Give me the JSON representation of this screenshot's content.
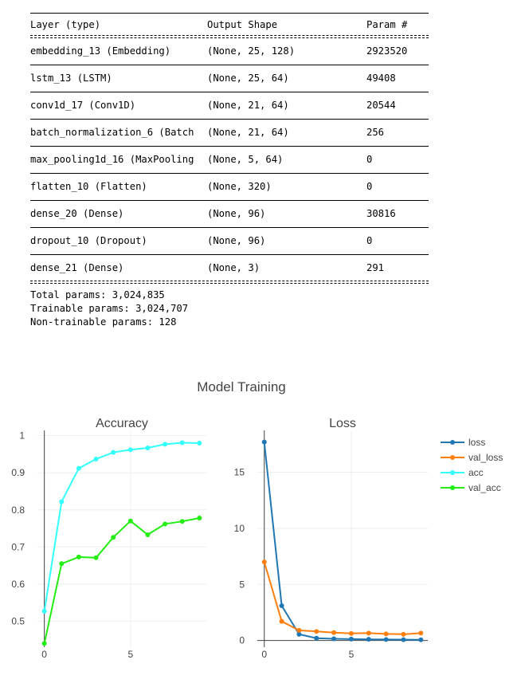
{
  "summary": {
    "headers": [
      "Layer (type)",
      "Output Shape",
      "Param #"
    ],
    "rows": [
      [
        "embedding_13 (Embedding)",
        "(None, 25, 128)",
        "2923520"
      ],
      [
        "lstm_13 (LSTM)",
        "(None, 25, 64)",
        "49408"
      ],
      [
        "conv1d_17 (Conv1D)",
        "(None, 21, 64)",
        "20544"
      ],
      [
        "batch_normalization_6 (Batch",
        "(None, 21, 64)",
        "256"
      ],
      [
        "max_pooling1d_16 (MaxPooling",
        "(None, 5, 64)",
        "0"
      ],
      [
        "flatten_10 (Flatten)",
        "(None, 320)",
        "0"
      ],
      [
        "dense_20 (Dense)",
        "(None, 96)",
        "30816"
      ],
      [
        "dropout_10 (Dropout)",
        "(None, 96)",
        "0"
      ],
      [
        "dense_21 (Dense)",
        "(None, 3)",
        "291"
      ]
    ],
    "totals": [
      "Total params: 3,024,835",
      "Trainable params: 3,024,707",
      "Non-trainable params: 128"
    ]
  },
  "chart_data": {
    "type": "line",
    "title": "Model Training",
    "subplots": [
      {
        "title": "Accuracy",
        "x": [
          0,
          1,
          2,
          3,
          4,
          5,
          6,
          7,
          8,
          9
        ],
        "xlim": [
          -0.4,
          9.4
        ],
        "ylim": [
          0.43,
          1.01
        ],
        "xticks": [
          0,
          5
        ],
        "yticks": [
          0.5,
          0.6,
          0.7,
          0.8,
          0.9,
          1
        ],
        "series": [
          {
            "name": "acc",
            "color": "#33ffff",
            "values": [
              0.527,
              0.822,
              0.912,
              0.937,
              0.955,
              0.962,
              0.967,
              0.977,
              0.981,
              0.98
            ]
          },
          {
            "name": "val_acc",
            "color": "#22ee11",
            "values": [
              0.44,
              0.655,
              0.673,
              0.671,
              0.726,
              0.77,
              0.733,
              0.762,
              0.769,
              0.778
            ]
          }
        ]
      },
      {
        "title": "Loss",
        "x": [
          0,
          1,
          2,
          3,
          4,
          5,
          6,
          7,
          8,
          9
        ],
        "xlim": [
          -0.4,
          9.4
        ],
        "ylim": [
          -0.6,
          18.6
        ],
        "xticks": [
          0,
          5
        ],
        "yticks": [
          0,
          5,
          10,
          15
        ],
        "series": [
          {
            "name": "loss",
            "color": "#1f77b4",
            "values": [
              17.7,
              3.1,
              0.55,
              0.2,
              0.15,
              0.12,
              0.1,
              0.08,
              0.07,
              0.06
            ]
          },
          {
            "name": "val_loss",
            "color": "#ff7f0e",
            "values": [
              7.0,
              1.7,
              0.9,
              0.8,
              0.7,
              0.62,
              0.65,
              0.58,
              0.55,
              0.65
            ]
          }
        ]
      }
    ],
    "legend": [
      "loss",
      "val_loss",
      "acc",
      "val_acc"
    ],
    "legend_position": "top-right"
  }
}
